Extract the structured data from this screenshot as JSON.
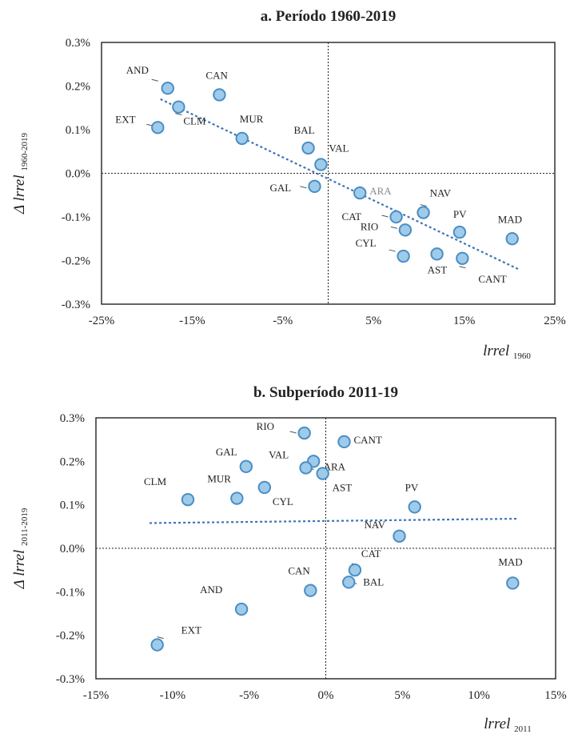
{
  "chart_data": [
    {
      "type": "scatter",
      "title": "a. Período 1960-2019",
      "xlabel": "lrrel",
      "xlabel_sub": "1960",
      "ylabel": "Δ lrrel",
      "ylabel_sub": "1960-2019",
      "xlim": [
        -25,
        25
      ],
      "ylim": [
        -0.3,
        0.3
      ],
      "x_ticks": [
        "-25%",
        "-15%",
        "-5%",
        "5%",
        "15%",
        "25%"
      ],
      "y_ticks": [
        "0.3%",
        "0.2%",
        "0.1%",
        "0.0%",
        "-0.1%",
        "-0.2%",
        "-0.3%"
      ],
      "trendline": [
        [
          -18.5,
          0.17
        ],
        [
          21,
          -0.22
        ]
      ],
      "points": [
        {
          "label": "AND",
          "x": -17.7,
          "y": 0.195
        },
        {
          "label": "CAN",
          "x": -12.0,
          "y": 0.18
        },
        {
          "label": "CLM",
          "x": -16.5,
          "y": 0.152
        },
        {
          "label": "EXT",
          "x": -18.8,
          "y": 0.105
        },
        {
          "label": "MUR",
          "x": -9.5,
          "y": 0.08
        },
        {
          "label": "BAL",
          "x": -2.2,
          "y": 0.058
        },
        {
          "label": "VAL",
          "x": -0.8,
          "y": 0.02
        },
        {
          "label": "GAL",
          "x": -1.5,
          "y": -0.03
        },
        {
          "label": "ARA",
          "x": 3.5,
          "y": -0.045
        },
        {
          "label": "CAT",
          "x": 7.5,
          "y": -0.1
        },
        {
          "label": "NAV",
          "x": 10.5,
          "y": -0.09
        },
        {
          "label": "RIO",
          "x": 8.5,
          "y": -0.13
        },
        {
          "label": "PV",
          "x": 14.5,
          "y": -0.135
        },
        {
          "label": "MAD",
          "x": 20.3,
          "y": -0.15
        },
        {
          "label": "CYL",
          "x": 8.3,
          "y": -0.19
        },
        {
          "label": "AST",
          "x": 12.0,
          "y": -0.185
        },
        {
          "label": "CANT",
          "x": 14.8,
          "y": -0.195
        }
      ]
    },
    {
      "type": "scatter",
      "title": "b. Subperíodo 2011-19",
      "xlabel": "lrrel",
      "xlabel_sub": "2011",
      "ylabel": "Δ lrrel",
      "ylabel_sub": "2011-2019",
      "xlim": [
        -15,
        15
      ],
      "ylim": [
        -0.3,
        0.3
      ],
      "x_ticks": [
        "-15%",
        "-10%",
        "-5%",
        "0%",
        "5%",
        "10%",
        "15%"
      ],
      "y_ticks": [
        "0.3%",
        "0.2%",
        "0.1%",
        "0.0%",
        "-0.1%",
        "-0.2%",
        "-0.3%"
      ],
      "trendline": [
        [
          -11.5,
          0.058
        ],
        [
          12.5,
          0.068
        ]
      ],
      "points": [
        {
          "label": "RIO",
          "x": -1.4,
          "y": 0.265
        },
        {
          "label": "CANT",
          "x": 1.2,
          "y": 0.245
        },
        {
          "label": "VAL",
          "x": -0.8,
          "y": 0.2
        },
        {
          "label": "GAL",
          "x": -5.2,
          "y": 0.188
        },
        {
          "label": "ARA",
          "x": -1.3,
          "y": 0.185
        },
        {
          "label": "AST",
          "x": -0.2,
          "y": 0.172
        },
        {
          "label": "CYL",
          "x": -4.0,
          "y": 0.14
        },
        {
          "label": "CLM",
          "x": -9.0,
          "y": 0.112
        },
        {
          "label": "MUR",
          "x": -5.8,
          "y": 0.115
        },
        {
          "label": "PV",
          "x": 5.8,
          "y": 0.095
        },
        {
          "label": "NAV",
          "x": 4.8,
          "y": 0.028
        },
        {
          "label": "CAT",
          "x": 1.9,
          "y": -0.05
        },
        {
          "label": "BAL",
          "x": 1.5,
          "y": -0.078
        },
        {
          "label": "CAN",
          "x": -1.0,
          "y": -0.097
        },
        {
          "label": "MAD",
          "x": 12.2,
          "y": -0.08
        },
        {
          "label": "AND",
          "x": -5.5,
          "y": -0.14
        },
        {
          "label": "EXT",
          "x": -11.0,
          "y": -0.222
        }
      ]
    }
  ]
}
